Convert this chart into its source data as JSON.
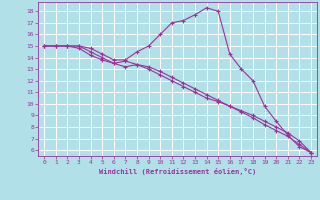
{
  "background_color": "#b2e0e8",
  "grid_color": "#ffffff",
  "line_color": "#993399",
  "xlabel": "Windchill (Refroidissement éolien,°C)",
  "xlim": [
    -0.5,
    23.5
  ],
  "ylim": [
    5.5,
    18.8
  ],
  "xticks": [
    0,
    1,
    2,
    3,
    4,
    5,
    6,
    7,
    8,
    9,
    10,
    11,
    12,
    13,
    14,
    15,
    16,
    17,
    18,
    19,
    20,
    21,
    22,
    23
  ],
  "yticks": [
    6,
    7,
    8,
    9,
    10,
    11,
    12,
    13,
    14,
    15,
    16,
    17,
    18
  ],
  "line1_x": [
    0,
    1,
    2,
    3,
    4,
    5,
    6,
    7,
    8,
    9,
    10,
    11,
    12,
    13,
    14,
    15,
    16,
    17,
    18,
    19,
    20,
    21,
    22,
    23
  ],
  "line1_y": [
    15.0,
    15.0,
    15.0,
    15.0,
    14.8,
    14.3,
    13.8,
    13.8,
    14.5,
    15.0,
    16.0,
    17.0,
    17.2,
    17.7,
    18.3,
    18.0,
    14.3,
    13.0,
    12.0,
    9.8,
    8.5,
    7.3,
    6.3,
    5.8
  ],
  "line2_x": [
    0,
    1,
    2,
    3,
    4,
    5,
    6,
    7,
    8,
    9,
    10,
    11,
    12,
    13,
    14,
    15,
    16,
    17,
    18,
    19,
    20,
    21,
    22,
    23
  ],
  "line2_y": [
    15.0,
    15.0,
    15.0,
    14.8,
    14.2,
    13.8,
    13.5,
    13.7,
    13.4,
    13.0,
    12.5,
    12.0,
    11.5,
    11.0,
    10.5,
    10.2,
    9.8,
    9.4,
    9.0,
    8.5,
    8.0,
    7.5,
    6.8,
    5.8
  ],
  "line3_x": [
    0,
    1,
    2,
    3,
    4,
    5,
    6,
    7,
    8,
    9,
    10,
    11,
    12,
    13,
    14,
    15,
    16,
    17,
    18,
    19,
    20,
    21,
    22,
    23
  ],
  "line3_y": [
    15.0,
    15.0,
    15.0,
    15.0,
    14.5,
    14.0,
    13.5,
    13.2,
    13.4,
    13.2,
    12.8,
    12.3,
    11.8,
    11.3,
    10.8,
    10.3,
    9.8,
    9.3,
    8.8,
    8.2,
    7.7,
    7.2,
    6.5,
    5.8
  ]
}
